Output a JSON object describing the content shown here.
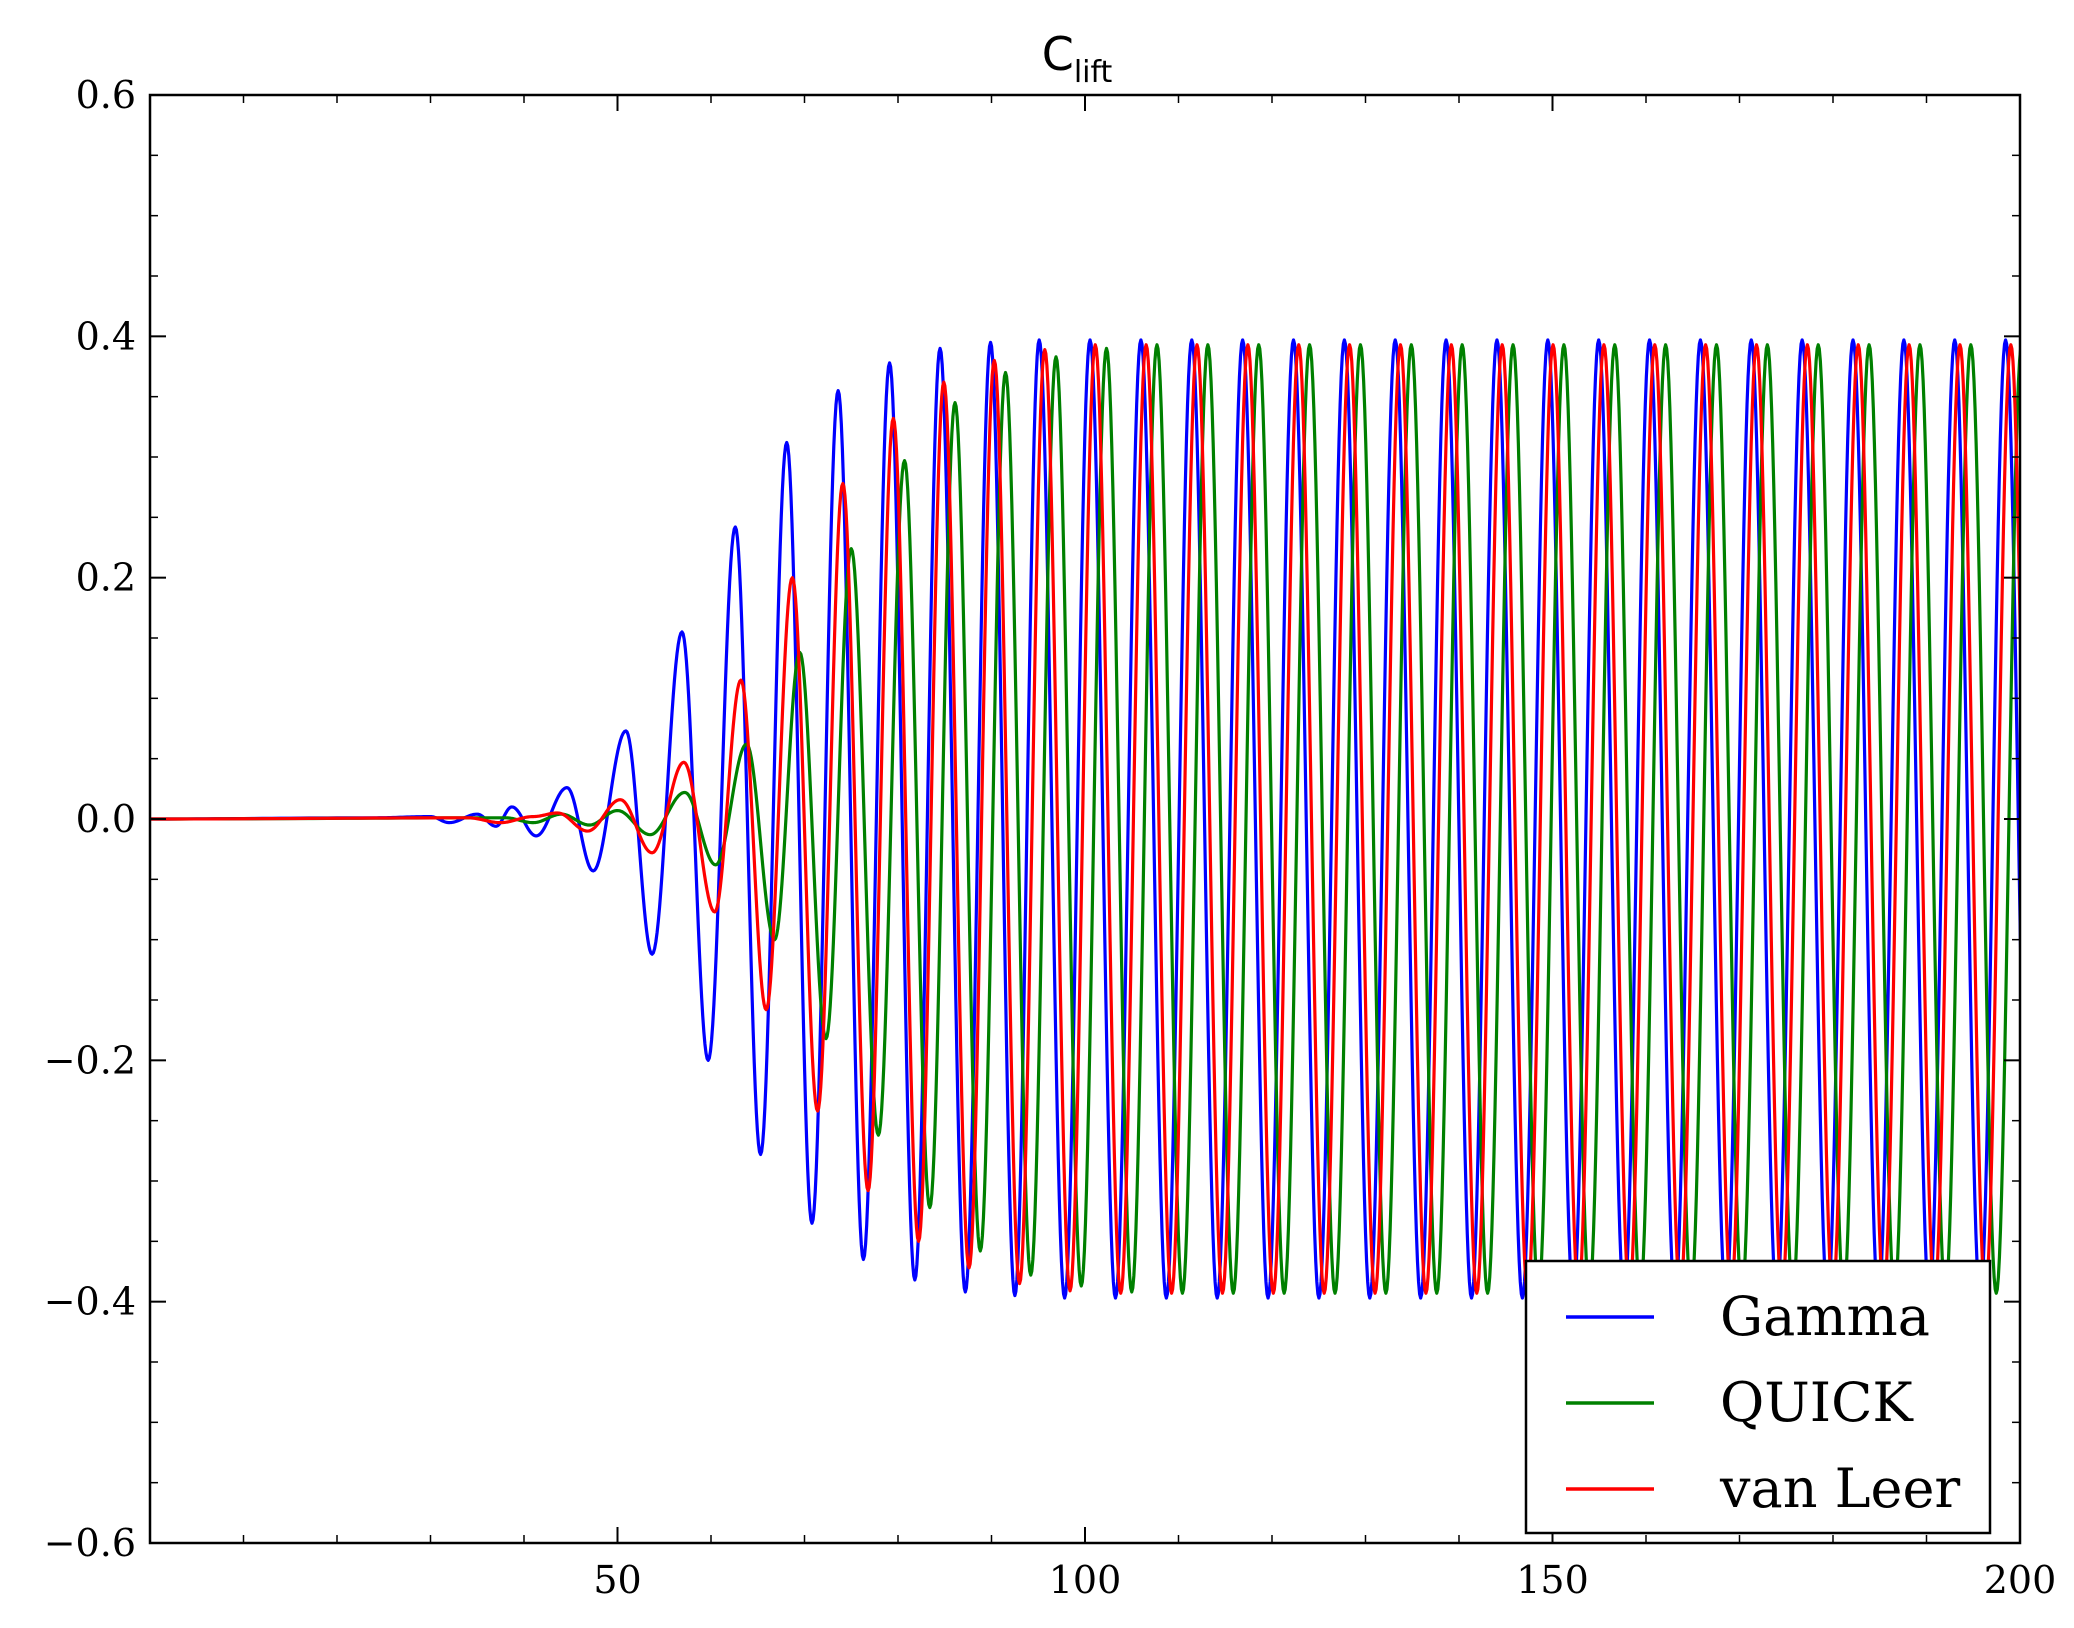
{
  "chart_data": {
    "type": "line",
    "title": "C",
    "title_subscript": "lift",
    "xlabel": "",
    "ylabel": "",
    "xlim": [
      0,
      200
    ],
    "ylim": [
      -0.6,
      0.6
    ],
    "xticks": [
      50,
      100,
      150,
      200
    ],
    "xtick_labels": [
      "50",
      "100",
      "150",
      "200"
    ],
    "yticks": [
      -0.6,
      -0.4,
      -0.2,
      0.0,
      0.2,
      0.4,
      0.6
    ],
    "ytick_labels": [
      "−0.6",
      "−0.4",
      "−0.2",
      "0.0",
      "0.2",
      "0.4",
      "0.6"
    ],
    "grid": false,
    "legend_position": "bottom-right",
    "series": [
      {
        "name": "Gamma",
        "color": "#0000ff",
        "extrema": [
          {
            "x": 0,
            "y": 0.0
          },
          {
            "x": 24,
            "y": 0.001
          },
          {
            "x": 30,
            "y": 0.002
          },
          {
            "x": 32,
            "y": -0.003
          },
          {
            "x": 35,
            "y": 0.004
          },
          {
            "x": 37,
            "y": -0.006
          },
          {
            "x": 38.7,
            "y": 0.01
          },
          {
            "x": 41.3,
            "y": -0.014
          },
          {
            "x": 44.6,
            "y": 0.026
          },
          {
            "x": 47.4,
            "y": -0.043
          },
          {
            "x": 50.9,
            "y": 0.073
          },
          {
            "x": 53.7,
            "y": -0.112
          },
          {
            "x": 56.9,
            "y": 0.155
          },
          {
            "x": 59.7,
            "y": -0.2
          },
          {
            "x": 62.6,
            "y": 0.242
          },
          {
            "x": 65.3,
            "y": -0.278
          },
          {
            "x": 68.1,
            "y": 0.312
          },
          {
            "x": 70.8,
            "y": -0.335
          },
          {
            "x": 73.6,
            "y": 0.355
          },
          {
            "x": 76.3,
            "y": -0.365
          },
          {
            "x": 79.1,
            "y": 0.378
          },
          {
            "x": 81.8,
            "y": -0.382
          },
          {
            "x": 84.5,
            "y": 0.39
          },
          {
            "x": 87.2,
            "y": -0.392
          },
          {
            "x": 89.9,
            "y": 0.395
          },
          {
            "x": 92.5,
            "y": -0.395
          },
          {
            "x": 95.1,
            "y": 0.397
          },
          {
            "x": 200,
            "y": 0.397
          }
        ],
        "steady_amplitude": 0.397,
        "steady_period": 5.44,
        "steady_phase_x": 95.1
      },
      {
        "name": "QUICK",
        "color": "#008000",
        "extrema": [
          {
            "x": 0,
            "y": 0.0
          },
          {
            "x": 38,
            "y": 0.001
          },
          {
            "x": 41,
            "y": -0.003
          },
          {
            "x": 44,
            "y": 0.004
          },
          {
            "x": 47,
            "y": -0.005
          },
          {
            "x": 50,
            "y": 0.007
          },
          {
            "x": 53.5,
            "y": -0.013
          },
          {
            "x": 57.2,
            "y": 0.022
          },
          {
            "x": 60.5,
            "y": -0.038
          },
          {
            "x": 63.8,
            "y": 0.062
          },
          {
            "x": 66.8,
            "y": -0.1
          },
          {
            "x": 69.5,
            "y": 0.138
          },
          {
            "x": 72.3,
            "y": -0.182
          },
          {
            "x": 75,
            "y": 0.224
          },
          {
            "x": 77.9,
            "y": -0.262
          },
          {
            "x": 80.7,
            "y": 0.297
          },
          {
            "x": 83.4,
            "y": -0.322
          },
          {
            "x": 86.1,
            "y": 0.345
          },
          {
            "x": 88.8,
            "y": -0.358
          },
          {
            "x": 91.5,
            "y": 0.37
          },
          {
            "x": 94.2,
            "y": -0.378
          },
          {
            "x": 96.9,
            "y": 0.383
          },
          {
            "x": 99.6,
            "y": -0.387
          },
          {
            "x": 102.3,
            "y": 0.39
          },
          {
            "x": 105,
            "y": -0.392
          },
          {
            "x": 107.7,
            "y": 0.393
          },
          {
            "x": 200,
            "y": 0.393
          }
        ],
        "steady_amplitude": 0.393,
        "steady_period": 5.44,
        "steady_phase_x": 107.7
      },
      {
        "name": "van Leer",
        "color": "#ff0000",
        "extrema": [
          {
            "x": 0,
            "y": 0.0
          },
          {
            "x": 34,
            "y": 0.001
          },
          {
            "x": 37.5,
            "y": -0.003
          },
          {
            "x": 41,
            "y": 0.002
          },
          {
            "x": 43.6,
            "y": 0.005
          },
          {
            "x": 46.8,
            "y": -0.01
          },
          {
            "x": 50.3,
            "y": 0.016
          },
          {
            "x": 53.7,
            "y": -0.028
          },
          {
            "x": 57.1,
            "y": 0.047
          },
          {
            "x": 60.4,
            "y": -0.077
          },
          {
            "x": 63.2,
            "y": 0.115
          },
          {
            "x": 65.9,
            "y": -0.158
          },
          {
            "x": 68.7,
            "y": 0.2
          },
          {
            "x": 71.4,
            "y": -0.242
          },
          {
            "x": 74.1,
            "y": 0.278
          },
          {
            "x": 76.8,
            "y": -0.308
          },
          {
            "x": 79.5,
            "y": 0.332
          },
          {
            "x": 82.2,
            "y": -0.35
          },
          {
            "x": 84.9,
            "y": 0.362
          },
          {
            "x": 87.6,
            "y": -0.372
          },
          {
            "x": 90.3,
            "y": 0.38
          },
          {
            "x": 93,
            "y": -0.385
          },
          {
            "x": 95.7,
            "y": 0.389
          },
          {
            "x": 98.4,
            "y": -0.391
          },
          {
            "x": 101.1,
            "y": 0.393
          },
          {
            "x": 200,
            "y": 0.393
          }
        ],
        "steady_amplitude": 0.393,
        "steady_period": 5.44,
        "steady_phase_x": 101.1
      }
    ]
  }
}
